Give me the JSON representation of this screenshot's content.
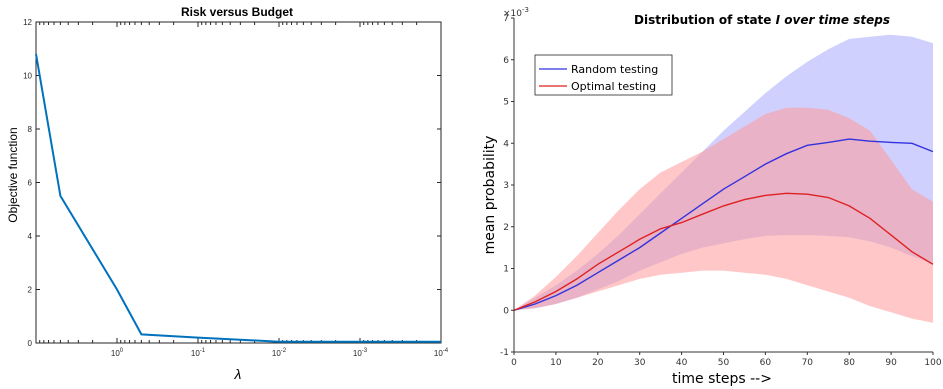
{
  "chart_data": [
    {
      "type": "line",
      "title": "Risk versus Budget",
      "xlabel": "λ",
      "ylabel": "Objective function",
      "xscale": "log",
      "x_direction": "reversed",
      "xlim": [
        10,
        0.0001
      ],
      "ylim": [
        0,
        12
      ],
      "xticks": [
        {
          "base": "10",
          "exp": "0",
          "value": 1
        },
        {
          "base": "10",
          "exp": "-1",
          "value": 0.1
        },
        {
          "base": "10",
          "exp": "-2",
          "value": 0.01
        },
        {
          "base": "10",
          "exp": "-3",
          "value": 0.001
        },
        {
          "base": "10",
          "exp": "-4",
          "value": 0.0001
        }
      ],
      "yticks": [
        "0",
        "2",
        "4",
        "6",
        "8",
        "10",
        "12"
      ],
      "color": "#0072BD",
      "series": [
        {
          "x": [
            10,
            5,
            1,
            0.5,
            0.1,
            0.01,
            0.001,
            0.0001
          ],
          "y": [
            10.8,
            5.5,
            2.0,
            0.32,
            0.2,
            0.05,
            0.05,
            0.05
          ]
        }
      ]
    },
    {
      "type": "line",
      "title_plain": "Distribution of state ",
      "title_italic": "I over time steps",
      "xlabel": "time steps -->",
      "ylabel": "mean probability",
      "xlim": [
        0,
        100
      ],
      "ylim": [
        -1,
        7
      ],
      "y_multiplier": "×10",
      "y_multiplier_exp": "-3",
      "xticks": [
        "0",
        "10",
        "20",
        "30",
        "40",
        "50",
        "60",
        "70",
        "80",
        "90",
        "100"
      ],
      "yticks": [
        "-1",
        "0",
        "1",
        "2",
        "3",
        "4",
        "5",
        "6",
        "7"
      ],
      "legend_position": "top-left",
      "x": [
        0,
        5,
        10,
        15,
        20,
        25,
        30,
        35,
        40,
        45,
        50,
        55,
        60,
        65,
        70,
        75,
        80,
        85,
        90,
        95,
        100
      ],
      "series": [
        {
          "name": "Random testing",
          "color": "#3333dd",
          "band_color": "#aaaaff",
          "mean": [
            0,
            0.15,
            0.35,
            0.6,
            0.9,
            1.2,
            1.5,
            1.85,
            2.2,
            2.55,
            2.9,
            3.2,
            3.5,
            3.75,
            3.95,
            4.02,
            4.1,
            4.05,
            4.02,
            4.0,
            3.8
          ],
          "upper": [
            0,
            0.3,
            0.6,
            0.95,
            1.35,
            1.8,
            2.3,
            2.8,
            3.3,
            3.8,
            4.3,
            4.75,
            5.2,
            5.6,
            5.95,
            6.25,
            6.5,
            6.55,
            6.6,
            6.55,
            6.4
          ],
          "lower": [
            0,
            0.05,
            0.15,
            0.3,
            0.5,
            0.7,
            0.95,
            1.15,
            1.35,
            1.5,
            1.6,
            1.7,
            1.78,
            1.8,
            1.8,
            1.78,
            1.75,
            1.65,
            1.5,
            1.3,
            1.1
          ]
        },
        {
          "name": "Optimal testing",
          "color": "#dd2222",
          "band_color": "#ff9999",
          "mean": [
            0,
            0.2,
            0.45,
            0.75,
            1.1,
            1.4,
            1.7,
            1.95,
            2.1,
            2.3,
            2.5,
            2.65,
            2.75,
            2.8,
            2.78,
            2.7,
            2.5,
            2.2,
            1.8,
            1.4,
            1.1
          ],
          "upper": [
            0,
            0.35,
            0.8,
            1.3,
            1.85,
            2.4,
            2.9,
            3.3,
            3.55,
            3.8,
            4.1,
            4.4,
            4.7,
            4.85,
            4.85,
            4.8,
            4.6,
            4.3,
            3.6,
            2.9,
            2.6
          ],
          "lower": [
            0,
            0.05,
            0.15,
            0.3,
            0.45,
            0.6,
            0.75,
            0.85,
            0.9,
            0.95,
            0.95,
            0.9,
            0.85,
            0.75,
            0.6,
            0.45,
            0.3,
            0.1,
            -0.05,
            -0.2,
            -0.3
          ]
        }
      ]
    }
  ]
}
